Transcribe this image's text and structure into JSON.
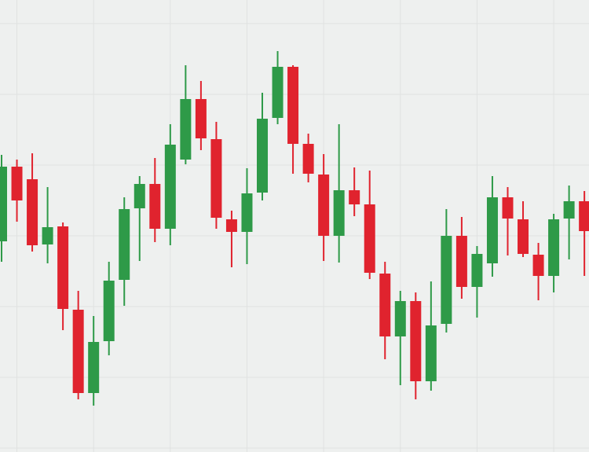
{
  "chart_data": {
    "type": "candlestick",
    "categories": [
      null,
      null,
      null,
      null,
      null,
      null,
      null,
      null,
      null,
      null,
      null,
      null,
      null,
      null,
      null,
      null,
      null,
      null,
      null,
      null,
      null,
      null,
      null,
      null,
      null,
      null,
      null,
      null,
      null,
      null,
      null,
      null,
      null,
      null,
      null,
      null,
      null,
      null,
      null
    ],
    "open": [
      268,
      363,
      347,
      264,
      287,
      181,
      75,
      141,
      219,
      310,
      341,
      284,
      372,
      449,
      398,
      296,
      280,
      330,
      425,
      490,
      392,
      353,
      275,
      333,
      315,
      227,
      147,
      192,
      90,
      163,
      275,
      210,
      240,
      324,
      296,
      251,
      224,
      297,
      319
    ],
    "high": [
      378,
      372,
      380,
      337,
      292,
      205,
      173,
      242,
      324,
      351,
      374,
      417,
      492,
      472,
      420,
      307,
      361,
      457,
      510,
      492,
      405,
      379,
      417,
      362,
      358,
      242,
      205,
      203,
      217,
      309,
      299,
      262,
      351,
      337,
      319,
      266,
      303,
      339,
      332
    ],
    "low": [
      242,
      293,
      255,
      240,
      155,
      67,
      59,
      123,
      186,
      243,
      267,
      263,
      366,
      384,
      284,
      235,
      239,
      320,
      417,
      354,
      343,
      243,
      241,
      300,
      220,
      118,
      85,
      67,
      78,
      152,
      195,
      171,
      223,
      250,
      248,
      193,
      203,
      245,
      224
    ],
    "close": [
      363,
      320,
      263,
      286,
      182,
      75,
      140,
      218,
      309,
      341,
      284,
      391,
      449,
      399,
      298,
      280,
      329,
      424,
      490,
      392,
      354,
      275,
      333,
      315,
      228,
      147,
      192,
      90,
      161,
      275,
      210,
      252,
      324,
      297,
      252,
      224,
      296,
      319,
      281
    ],
    "up_color": "#2e9a48",
    "down_color": "#e0232e",
    "ylim": [
      0,
      575
    ],
    "yticks": [
      5,
      95,
      185,
      275,
      365,
      455,
      545
    ],
    "grid": true
  }
}
